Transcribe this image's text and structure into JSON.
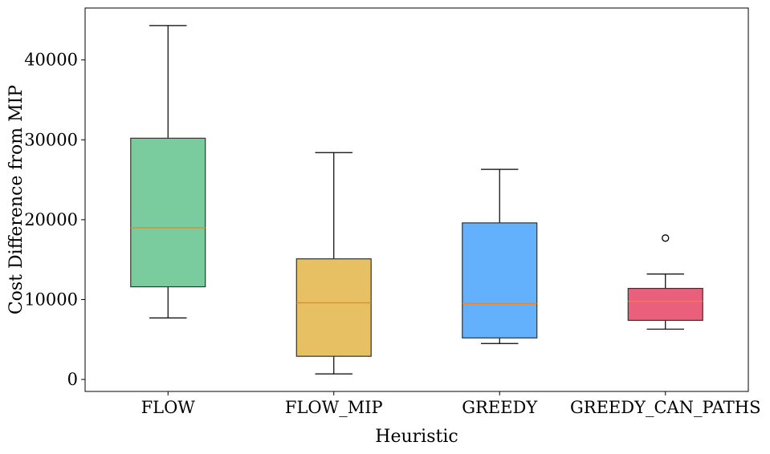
{
  "chart_data": {
    "type": "box",
    "xlabel": "Heuristic",
    "ylabel": "Cost Difference from MIP",
    "ylim": [
      -1500,
      46500
    ],
    "yticks": [
      0,
      10000,
      20000,
      30000,
      40000
    ],
    "ytick_labels": [
      "0",
      "10000",
      "20000",
      "30000",
      "40000"
    ],
    "grid": false,
    "categories": [
      "FLOW",
      "FLOW_MIP",
      "GREEDY",
      "GREEDY_CAN_PATHS"
    ],
    "boxes": [
      {
        "label": "FLOW",
        "whislo": 7700,
        "q1": 11600,
        "median": 19000,
        "q3": 30200,
        "whishi": 44300,
        "fliers": [],
        "color": "#4dbb7e"
      },
      {
        "label": "FLOW_MIP",
        "whislo": 700,
        "q1": 2900,
        "median": 9600,
        "q3": 15100,
        "whishi": 28400,
        "fliers": [],
        "color": "#dfab2f"
      },
      {
        "label": "GREEDY",
        "whislo": 4500,
        "q1": 5200,
        "median": 9500,
        "q3": 19600,
        "whishi": 26300,
        "fliers": [],
        "color": "#2f95fc"
      },
      {
        "label": "GREEDY_CAN_PATHS",
        "whislo": 6300,
        "q1": 7400,
        "median": 9800,
        "q3": 11400,
        "whishi": 13200,
        "fliers": [
          17700
        ],
        "color": "#e32b50"
      }
    ],
    "median_color": "#ff7f0e"
  }
}
